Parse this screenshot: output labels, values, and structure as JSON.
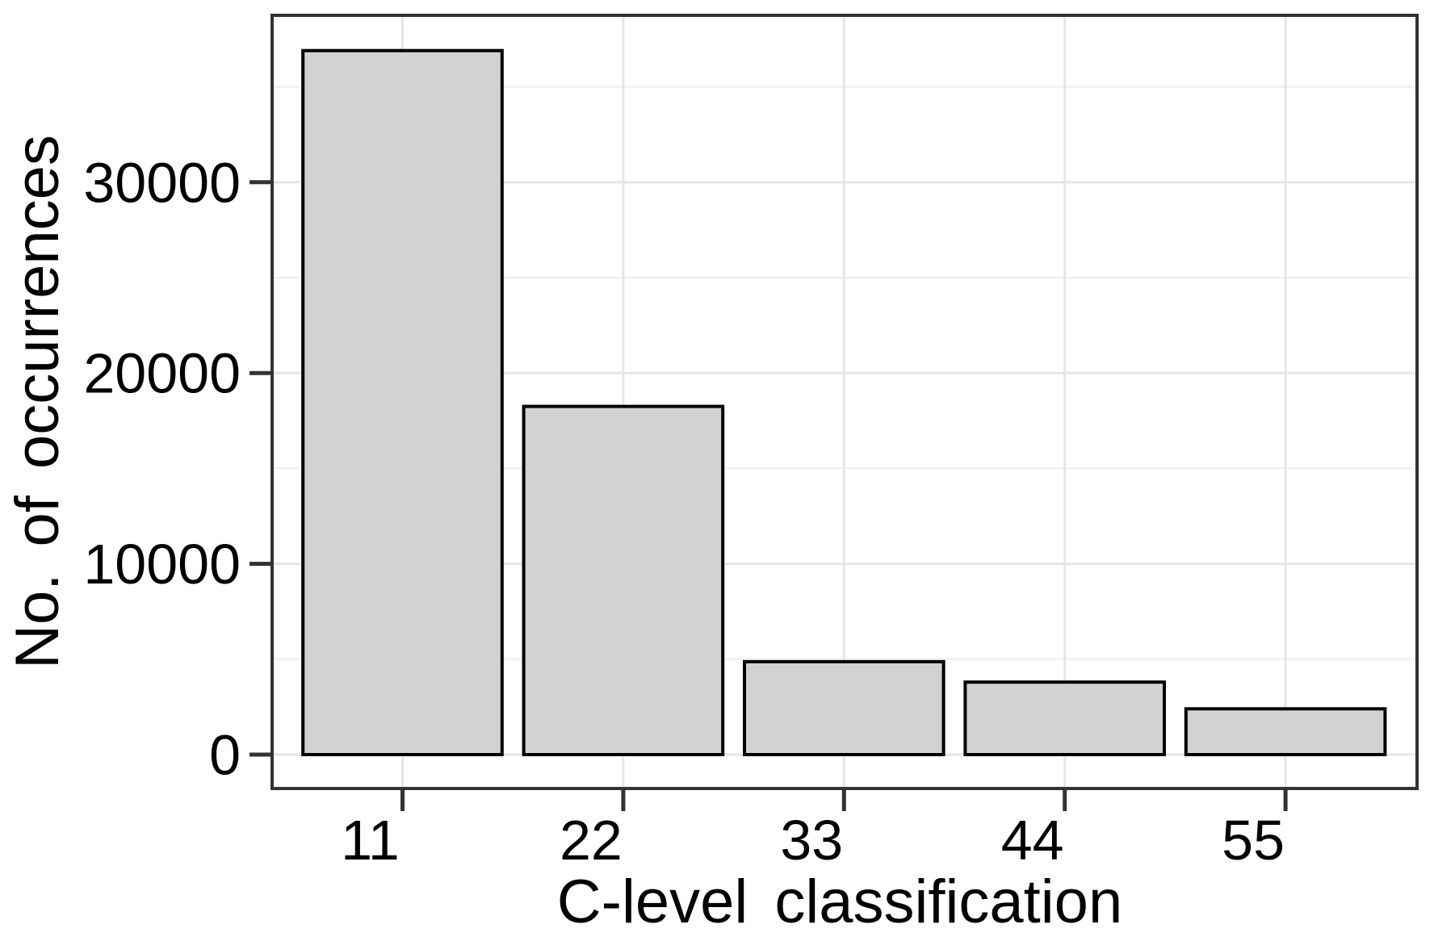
{
  "chart_data": {
    "type": "bar",
    "title": "",
    "xlabel": "C-level classification",
    "ylabel": "No. of occurrences",
    "categories": [
      "11",
      "22",
      "33",
      "44",
      "55"
    ],
    "values": [
      36900,
      18250,
      4870,
      3800,
      2400
    ],
    "yticks": {
      "values": [
        0,
        10000,
        20000,
        30000
      ],
      "labels": [
        "0",
        "10000",
        "20000",
        "30000"
      ]
    },
    "yminor": [
      5000,
      15000,
      25000,
      35000
    ],
    "ylim_panel": [
      -1800,
      38700
    ],
    "grid": "horizontal major+minor, vertical major at category centers",
    "legend": "none",
    "colors": {
      "background": "#ffffff",
      "bar_fill": "#d2d2d2",
      "bar_stroke": "#000000",
      "panel_border": "#333333",
      "grid_major": "#e6e6e6",
      "grid_minor": "#f2f2f2",
      "tick": "#333333",
      "text": "#000000"
    }
  }
}
